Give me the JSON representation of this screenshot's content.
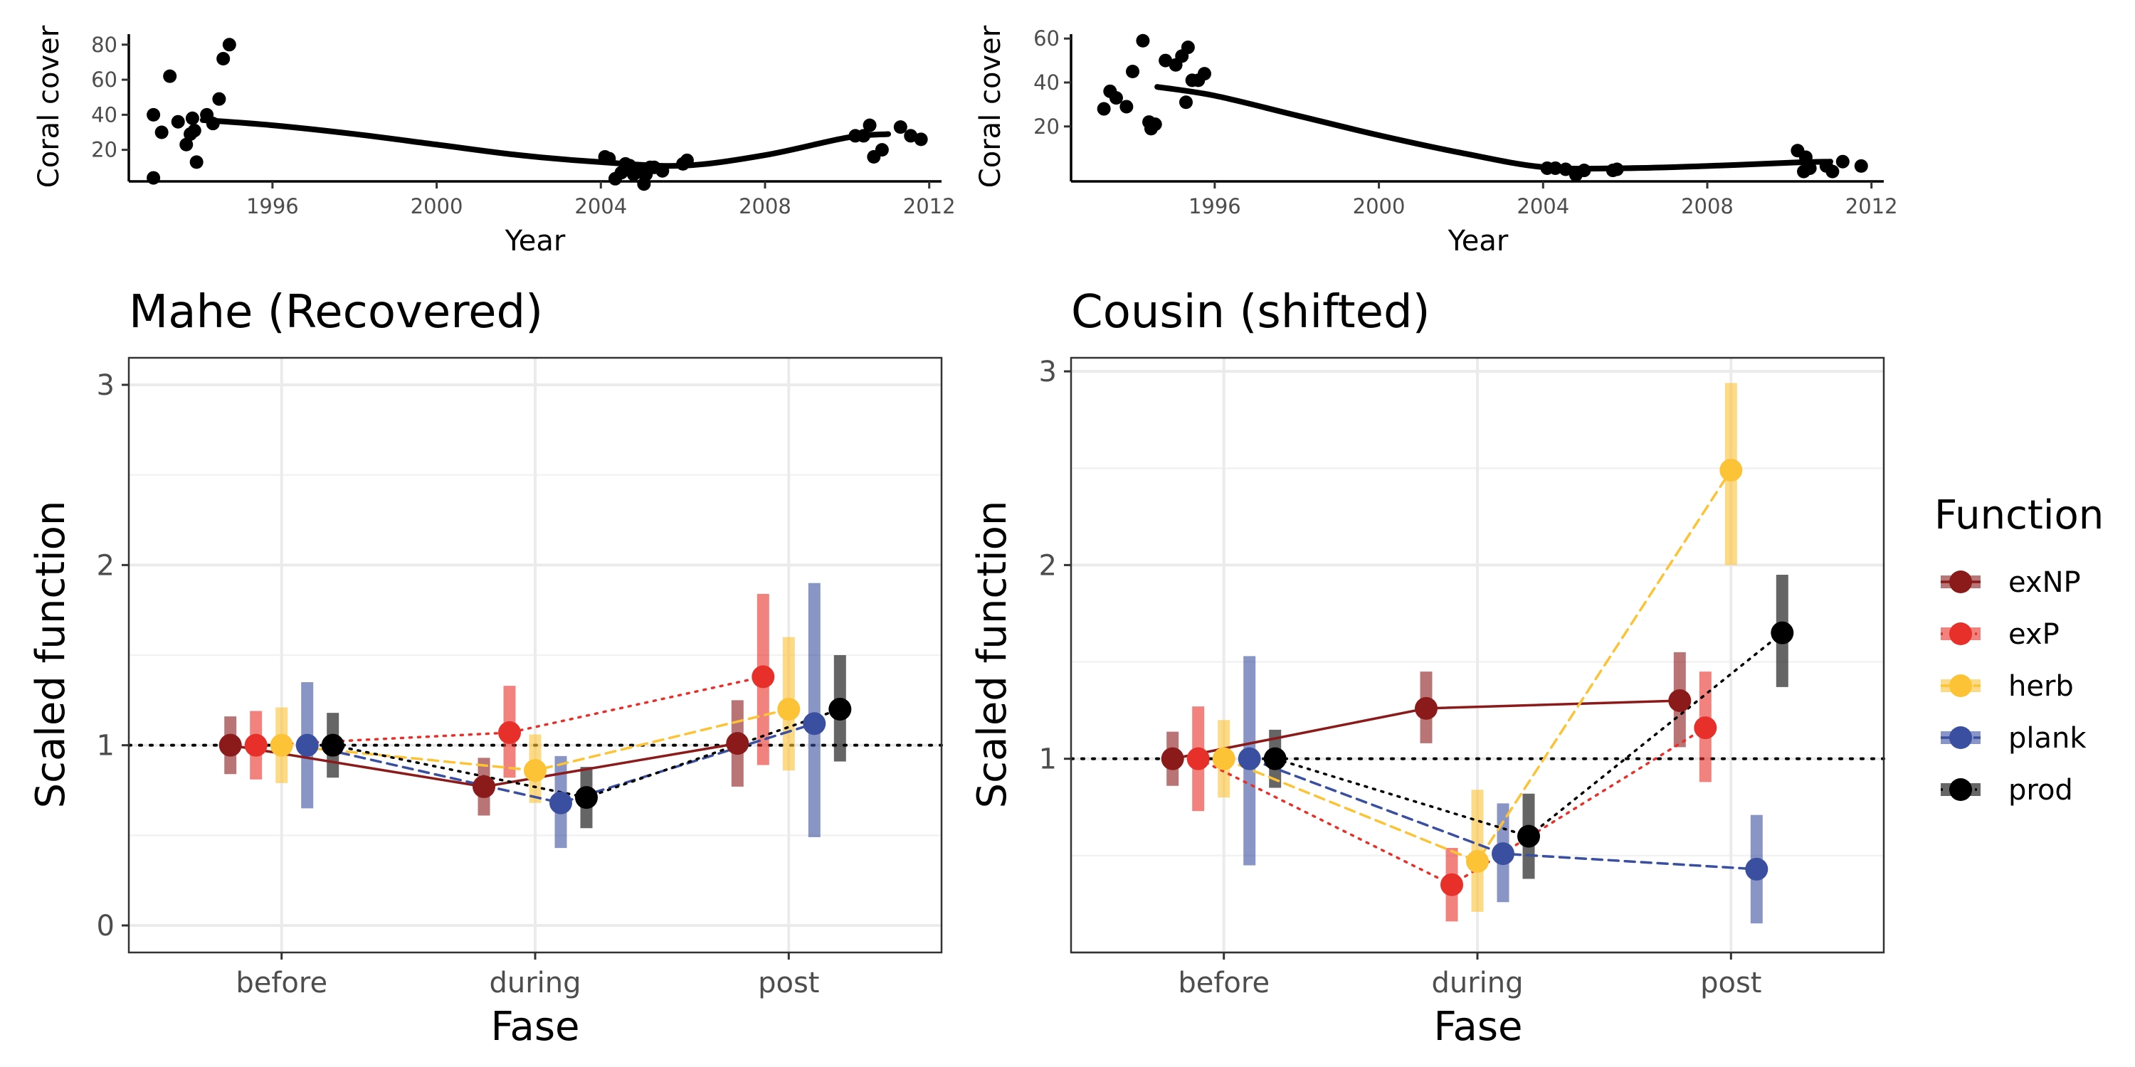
{
  "chart_data": [
    {
      "id": "mahe_cover",
      "type": "scatter",
      "xlabel": "Year",
      "ylabel": "Coral cover",
      "xticks": [
        "1996",
        "2000",
        "2004",
        "2008",
        "2012"
      ],
      "xtick_values": [
        1996,
        2000,
        2004,
        2008,
        2012
      ],
      "yticks": [
        "20",
        "40",
        "60",
        "80"
      ],
      "ytick_values": [
        20,
        40,
        60,
        80
      ],
      "xlim": [
        1992.5,
        2012.3
      ],
      "ylim": [
        2,
        86
      ],
      "points": [
        [
          1993.1,
          40
        ],
        [
          1993.3,
          30
        ],
        [
          1993.5,
          62
        ],
        [
          1993.7,
          36
        ],
        [
          1993.9,
          23
        ],
        [
          1994.0,
          29
        ],
        [
          1994.05,
          38
        ],
        [
          1994.1,
          31
        ],
        [
          1994.4,
          40
        ],
        [
          1994.55,
          35
        ],
        [
          1994.7,
          49
        ],
        [
          1994.8,
          72
        ],
        [
          1994.95,
          80
        ],
        [
          1993.1,
          4
        ],
        [
          1994.15,
          13
        ],
        [
          2004.1,
          16
        ],
        [
          2004.2,
          15
        ],
        [
          2004.35,
          3.5
        ],
        [
          2004.5,
          7
        ],
        [
          2004.6,
          12
        ],
        [
          2004.7,
          11
        ],
        [
          2004.85,
          8
        ],
        [
          2004.95,
          7.5
        ],
        [
          2005.0,
          9
        ],
        [
          2005.1,
          6
        ],
        [
          2005.2,
          10
        ],
        [
          2005.3,
          10
        ],
        [
          2005.5,
          8
        ],
        [
          2006.0,
          12
        ],
        [
          2006.1,
          14
        ],
        [
          2004.8,
          6
        ],
        [
          2005.05,
          0.5
        ],
        [
          2010.2,
          28
        ],
        [
          2010.4,
          28
        ],
        [
          2010.55,
          34
        ],
        [
          2010.65,
          16
        ],
        [
          2010.85,
          20
        ],
        [
          2011.3,
          33
        ],
        [
          2011.55,
          28
        ],
        [
          2011.8,
          26
        ]
      ],
      "trend": [
        [
          1994.3,
          37
        ],
        [
          1996,
          34
        ],
        [
          1998,
          29
        ],
        [
          2000,
          23
        ],
        [
          2002,
          17
        ],
        [
          2004,
          13
        ],
        [
          2006,
          11
        ],
        [
          2008,
          17
        ],
        [
          2010,
          27
        ],
        [
          2011,
          29
        ]
      ]
    },
    {
      "id": "cousin_cover",
      "type": "scatter",
      "xlabel": "Year",
      "ylabel": "Coral cover",
      "xticks": [
        "1996",
        "2000",
        "2004",
        "2008",
        "2012"
      ],
      "xtick_values": [
        1996,
        2000,
        2004,
        2008,
        2012
      ],
      "yticks": [
        "20",
        "40",
        "60"
      ],
      "ytick_values": [
        20,
        40,
        60
      ],
      "xlim": [
        1992.5,
        2012.3
      ],
      "ylim": [
        -5,
        62
      ],
      "points": [
        [
          1993.3,
          28
        ],
        [
          1993.45,
          36
        ],
        [
          1993.6,
          33
        ],
        [
          1993.85,
          29
        ],
        [
          1994.0,
          45
        ],
        [
          1994.25,
          59
        ],
        [
          1994.4,
          22
        ],
        [
          1994.45,
          19
        ],
        [
          1994.55,
          21
        ],
        [
          1994.8,
          50
        ],
        [
          1995.05,
          48
        ],
        [
          1995.2,
          52
        ],
        [
          1995.35,
          56
        ],
        [
          1995.45,
          41
        ],
        [
          1995.6,
          41
        ],
        [
          1995.75,
          44
        ],
        [
          1995.3,
          31
        ],
        [
          2004.1,
          1
        ],
        [
          2004.3,
          1
        ],
        [
          2004.55,
          0.5
        ],
        [
          2004.8,
          -2
        ],
        [
          2005.0,
          0
        ],
        [
          2005.7,
          0
        ],
        [
          2005.8,
          0.5
        ],
        [
          2010.2,
          9
        ],
        [
          2010.4,
          6
        ],
        [
          2010.35,
          -0.5
        ],
        [
          2010.9,
          2
        ],
        [
          2011.05,
          -0.5
        ],
        [
          2011.3,
          4
        ],
        [
          2011.75,
          2
        ],
        [
          2010.5,
          1
        ]
      ],
      "trend": [
        [
          1994.6,
          38
        ],
        [
          1996,
          34
        ],
        [
          1998,
          25
        ],
        [
          2000,
          16
        ],
        [
          2002,
          8
        ],
        [
          2004,
          1.5
        ],
        [
          2006,
          1
        ],
        [
          2008,
          2
        ],
        [
          2010,
          3.5
        ],
        [
          2011,
          4
        ]
      ]
    },
    {
      "id": "mahe_function",
      "type": "line",
      "title": "Mahe (Recovered)",
      "xlabel": "Fase",
      "ylabel": "Scaled function",
      "categories": [
        "before",
        "during",
        "post"
      ],
      "yticks": [
        "0",
        "1",
        "2",
        "3"
      ],
      "ytick_values": [
        0,
        1,
        2,
        3
      ],
      "ylim": [
        -0.15,
        3.15
      ],
      "reference_line": 1,
      "grid": true,
      "series": [
        {
          "name": "exNP",
          "values": [
            1.0,
            0.77,
            1.01
          ],
          "lower": [
            0.84,
            0.61,
            0.77
          ],
          "upper": [
            1.16,
            0.93,
            1.25
          ]
        },
        {
          "name": "exP",
          "values": [
            1.0,
            1.07,
            1.38
          ],
          "lower": [
            0.81,
            0.82,
            0.89
          ],
          "upper": [
            1.19,
            1.33,
            1.84
          ]
        },
        {
          "name": "herb",
          "values": [
            1.0,
            0.86,
            1.2
          ],
          "lower": [
            0.79,
            0.68,
            0.86
          ],
          "upper": [
            1.21,
            1.06,
            1.6
          ]
        },
        {
          "name": "plank",
          "values": [
            1.0,
            0.68,
            1.12
          ],
          "lower": [
            0.65,
            0.43,
            0.49
          ],
          "upper": [
            1.35,
            0.94,
            1.9
          ]
        },
        {
          "name": "prod",
          "values": [
            1.0,
            0.71,
            1.2
          ],
          "lower": [
            0.82,
            0.54,
            0.91
          ],
          "upper": [
            1.18,
            0.88,
            1.5
          ]
        }
      ]
    },
    {
      "id": "cousin_function",
      "type": "line",
      "title": "Cousin (shifted)",
      "xlabel": "Fase",
      "ylabel": "Scaled function",
      "categories": [
        "before",
        "during",
        "post"
      ],
      "yticks": [
        "1",
        "2",
        "3"
      ],
      "ytick_values": [
        1,
        2,
        3
      ],
      "ylim": [
        0.0,
        3.07
      ],
      "reference_line": 1,
      "grid": true,
      "series": [
        {
          "name": "exNP",
          "values": [
            1.0,
            1.26,
            1.3
          ],
          "lower": [
            0.86,
            1.08,
            1.06
          ],
          "upper": [
            1.14,
            1.45,
            1.55
          ]
        },
        {
          "name": "exP",
          "values": [
            1.0,
            0.35,
            1.16
          ],
          "lower": [
            0.73,
            0.16,
            0.88
          ],
          "upper": [
            1.27,
            0.54,
            1.45
          ]
        },
        {
          "name": "herb",
          "values": [
            1.0,
            0.47,
            2.49
          ],
          "lower": [
            0.8,
            0.21,
            2.0
          ],
          "upper": [
            1.2,
            0.84,
            2.94
          ]
        },
        {
          "name": "plank",
          "values": [
            1.0,
            0.51,
            0.43
          ],
          "lower": [
            0.45,
            0.26,
            0.15
          ],
          "upper": [
            1.53,
            0.77,
            0.71
          ]
        },
        {
          "name": "prod",
          "values": [
            1.0,
            0.6,
            1.65
          ],
          "lower": [
            0.85,
            0.38,
            1.37
          ],
          "upper": [
            1.15,
            0.82,
            1.95
          ]
        }
      ]
    }
  ],
  "legend": {
    "title": "Function",
    "items": [
      {
        "name": "exNP",
        "color": "#8b1a1a",
        "line": "solid"
      },
      {
        "name": "exP",
        "color": "#e8302a",
        "line": "dotted"
      },
      {
        "name": "herb",
        "color": "#fcc336",
        "line": "dashed"
      },
      {
        "name": "plank",
        "color": "#3a4fa0",
        "line": "dashed"
      },
      {
        "name": "prod",
        "color": "#000000",
        "line": "dotted"
      }
    ]
  }
}
